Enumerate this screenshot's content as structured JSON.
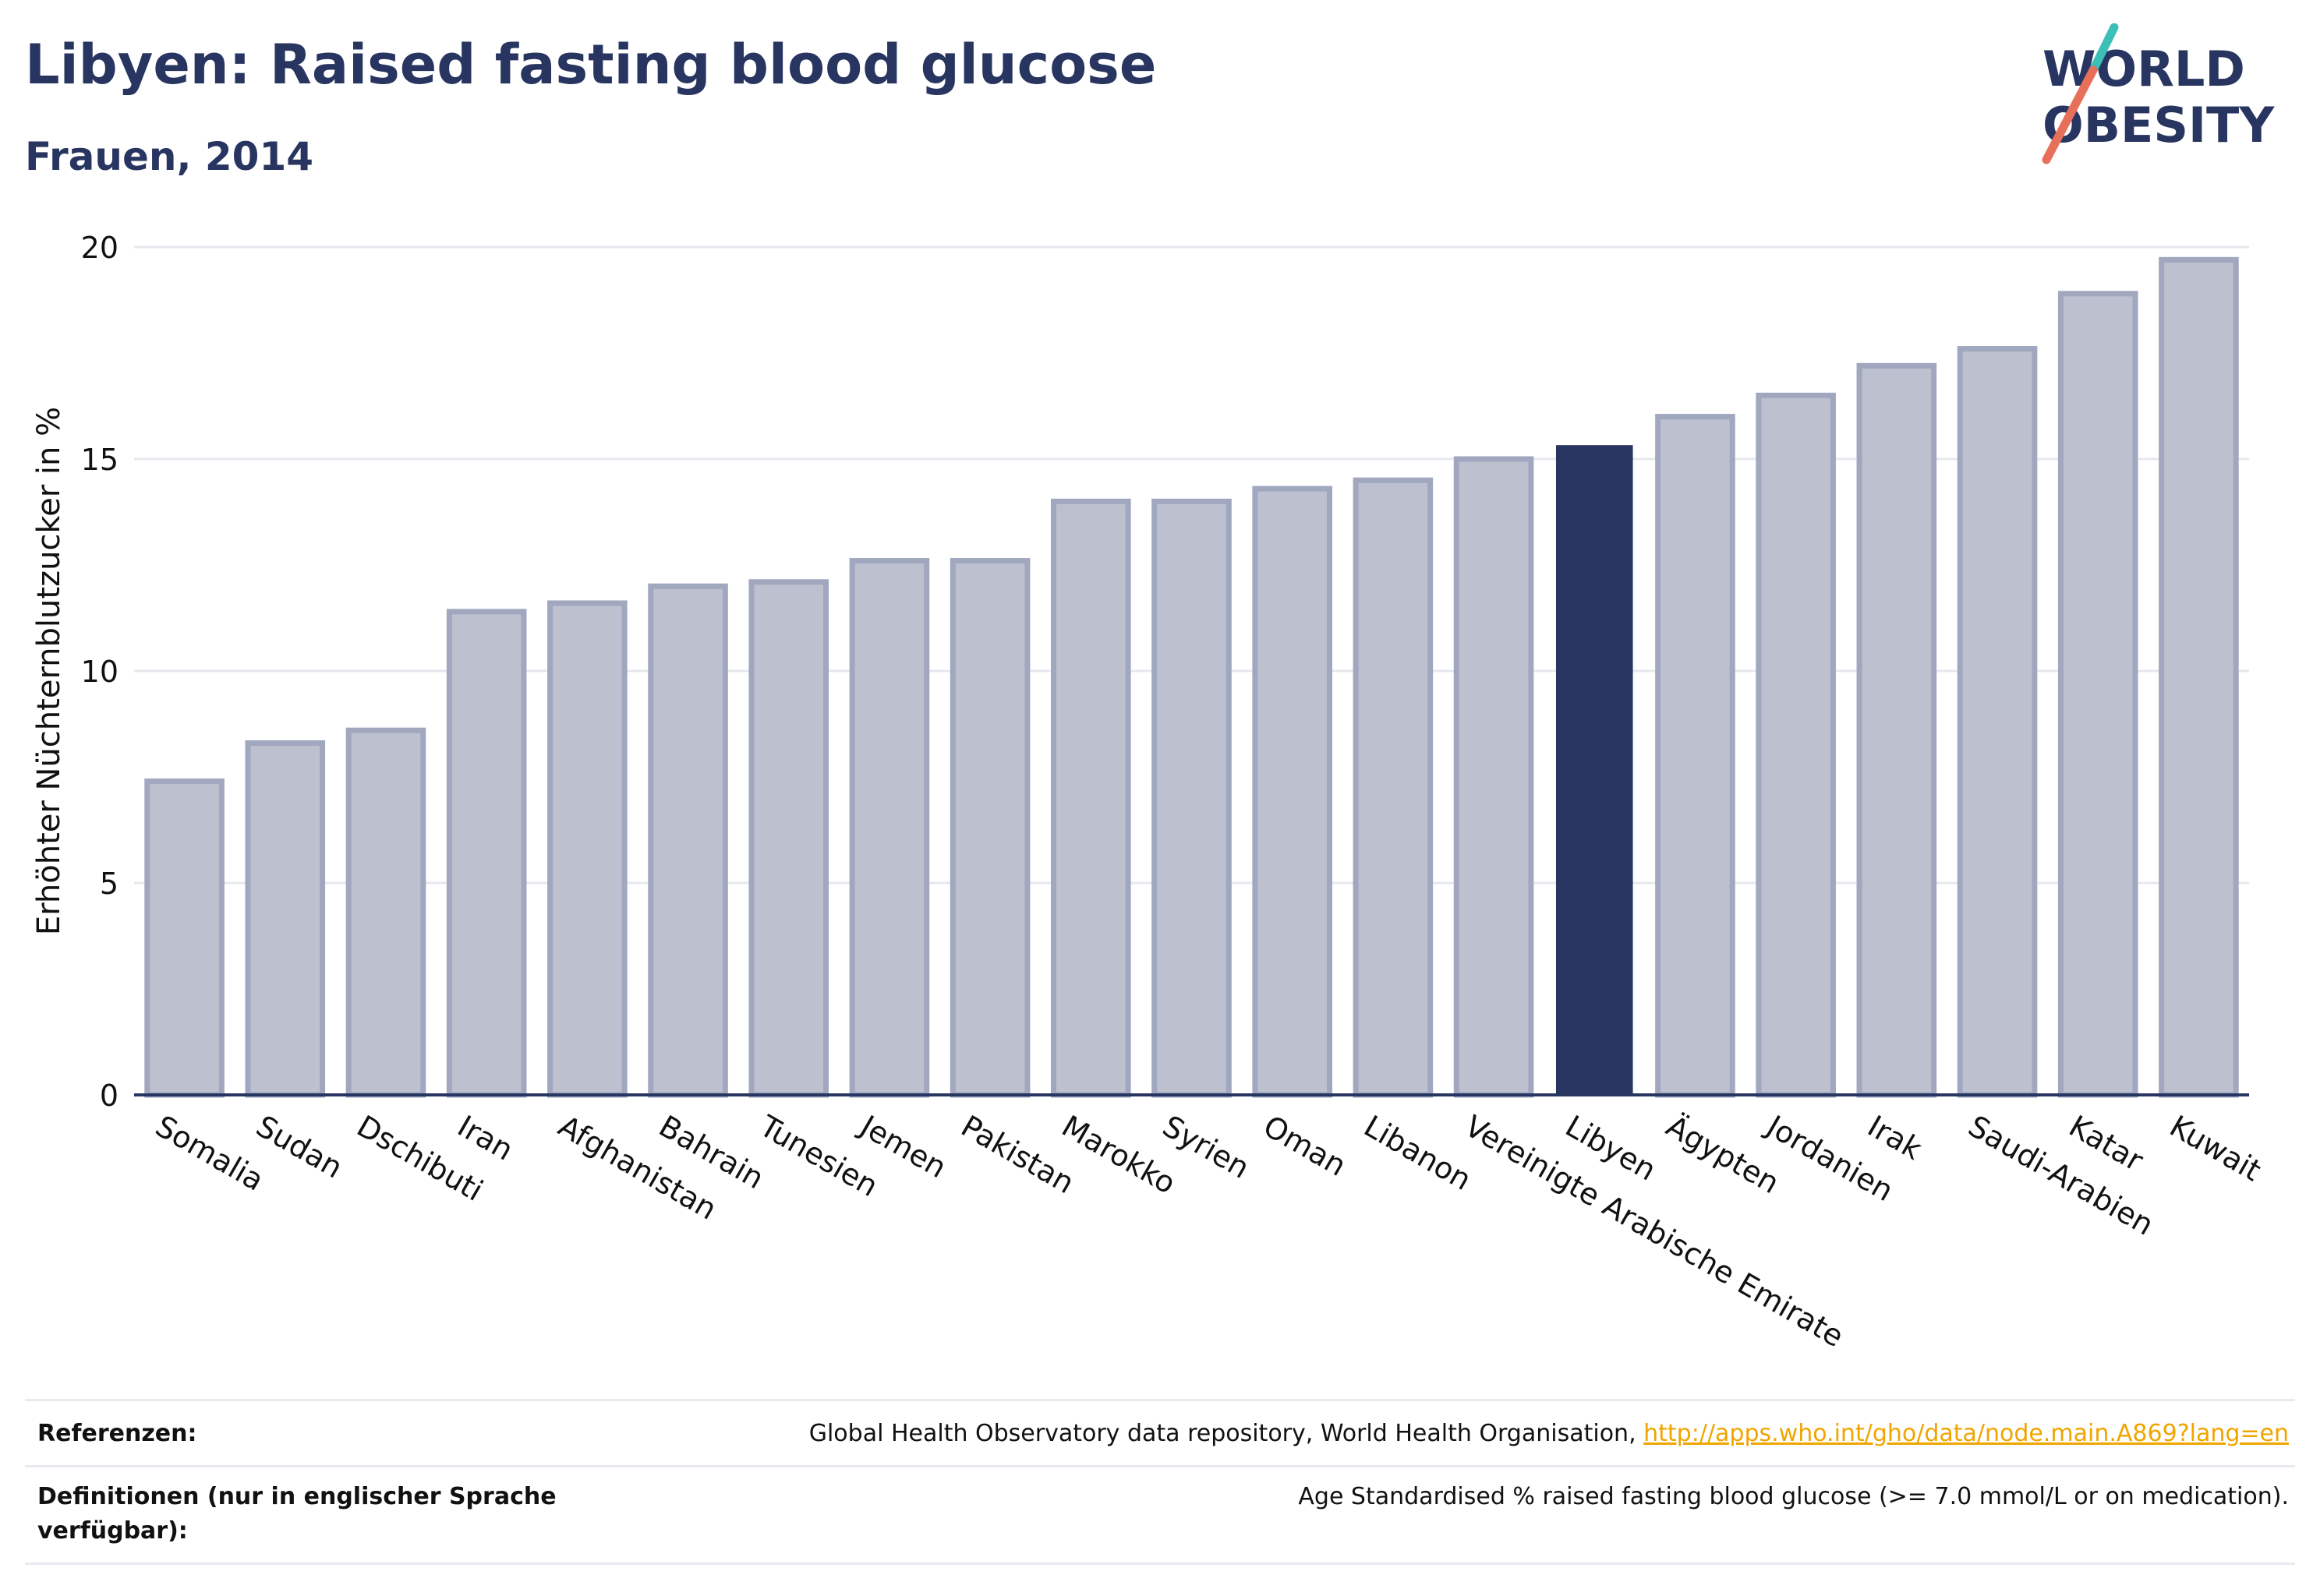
{
  "header": {
    "title": "Libyen: Raised fasting blood glucose",
    "subtitle": "Frauen, 2014"
  },
  "logo": {
    "line1": "WORLD",
    "line2": "OBESITY"
  },
  "colors": {
    "highlight": "#283560",
    "bar_fill": "#bcc0cf",
    "bar_border": "#a0a7bf",
    "grid": "#e6e8ee",
    "axis": "#283560",
    "logo_teal": "#3bbfb6",
    "logo_coral": "#e8705a",
    "link": "#f0a500"
  },
  "chart_data": {
    "type": "bar",
    "title": "Libyen: Raised fasting blood glucose",
    "subtitle": "Frauen, 2014",
    "xlabel": "",
    "ylabel": "Erhöhter Nüchternblutzucker in %",
    "ylim": [
      0,
      20
    ],
    "yticks": [
      0,
      5,
      10,
      15,
      20
    ],
    "grid": true,
    "highlight": "Libyen",
    "categories": [
      "Somalia",
      "Sudan",
      "Dschibuti",
      "Iran",
      "Afghanistan",
      "Bahrain",
      "Tunesien",
      "Jemen",
      "Pakistan",
      "Marokko",
      "Syrien",
      "Oman",
      "Libanon",
      "Vereinigte Arabische Emirate",
      "Libyen",
      "Ägypten",
      "Jordanien",
      "Irak",
      "Saudi-Arabien",
      "Katar",
      "Kuwait"
    ],
    "values": [
      7.4,
      8.3,
      8.6,
      11.4,
      11.6,
      12.0,
      12.1,
      12.6,
      12.6,
      14.0,
      14.0,
      14.3,
      14.5,
      15.0,
      15.3,
      16.0,
      16.5,
      17.2,
      17.6,
      18.9,
      19.7
    ]
  },
  "footer": {
    "references_label": "Referenzen:",
    "references_text": "Global Health Observatory data repository, World Health Organisation, ",
    "references_link": "http://apps.who.int/gho/data/node.main.A869?lang=en",
    "definitions_label": "Definitionen (nur in englischer Sprache verfügbar):",
    "definitions_text": "Age Standardised % raised fasting blood glucose (>= 7.0 mmol/L or on medication)."
  }
}
